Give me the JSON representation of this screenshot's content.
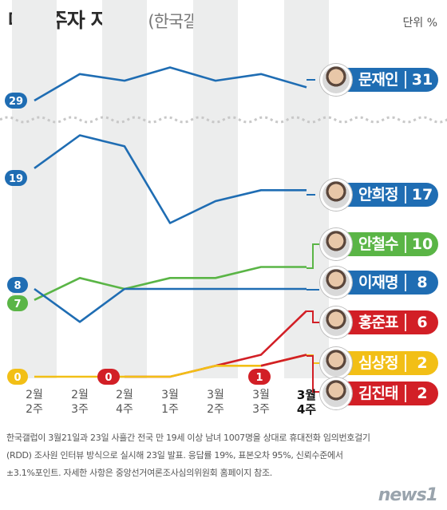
{
  "title": "대선 주자 지지율",
  "subtitle": "(한국갤럽)",
  "unit": "단위 %",
  "note": "한국갤럽이 3월21일과 23일 사흘간 전국 만 19세 이상 남녀 1007명을 상대로 휴대전화 임의번호걸기(RDD) 조사원 인터뷰 방식으로 실시해 23일 발표. 응답률 19%, 표본오차 95%, 신뢰수준에서 ±3.1%포인트. 자세한 사항은 중앙선거여론조사심의위원회 홈페이지 참조.",
  "logo": "news1",
  "chart_data": {
    "type": "line",
    "x": [
      {
        "month": "2월",
        "week": "2주"
      },
      {
        "month": "2월",
        "week": "3주"
      },
      {
        "month": "2월",
        "week": "4주"
      },
      {
        "month": "3월",
        "week": "1주"
      },
      {
        "month": "3월",
        "week": "2주"
      },
      {
        "month": "3월",
        "week": "3주"
      },
      {
        "month": "3월",
        "week": "4주"
      }
    ],
    "axis_break_between": [
      "문재인",
      "안희정"
    ],
    "series": [
      {
        "name": "문재인",
        "color": "#1f6db3",
        "values": [
          29,
          33,
          32,
          34,
          32,
          33,
          31
        ],
        "start_label": "29",
        "end_label": "31"
      },
      {
        "name": "안희정",
        "color": "#1f6db3",
        "values": [
          19,
          22,
          21,
          14,
          16,
          17,
          17
        ],
        "start_label": "19",
        "end_label": "17"
      },
      {
        "name": "안철수",
        "color": "#5ab546",
        "values": [
          7,
          9,
          8,
          9,
          9,
          10,
          10
        ],
        "start_label": "7",
        "end_label": "10"
      },
      {
        "name": "이재명",
        "color": "#1f6db3",
        "values": [
          8,
          5,
          8,
          8,
          8,
          8,
          8
        ],
        "start_label": "8",
        "end_label": "8"
      },
      {
        "name": "홍준표",
        "color": "#d21f26",
        "values": [
          null,
          null,
          0,
          0,
          1,
          2,
          6
        ],
        "start_label": "0",
        "end_label": "6"
      },
      {
        "name": "심상정",
        "color": "#f2bf16",
        "values": [
          0,
          0,
          0,
          0,
          1,
          1,
          2
        ],
        "start_label": "0",
        "end_label": "2"
      },
      {
        "name": "김진태",
        "color": "#d21f26",
        "values": [
          null,
          null,
          null,
          null,
          null,
          1,
          2
        ],
        "start_label": "1",
        "end_label": "2"
      }
    ]
  }
}
